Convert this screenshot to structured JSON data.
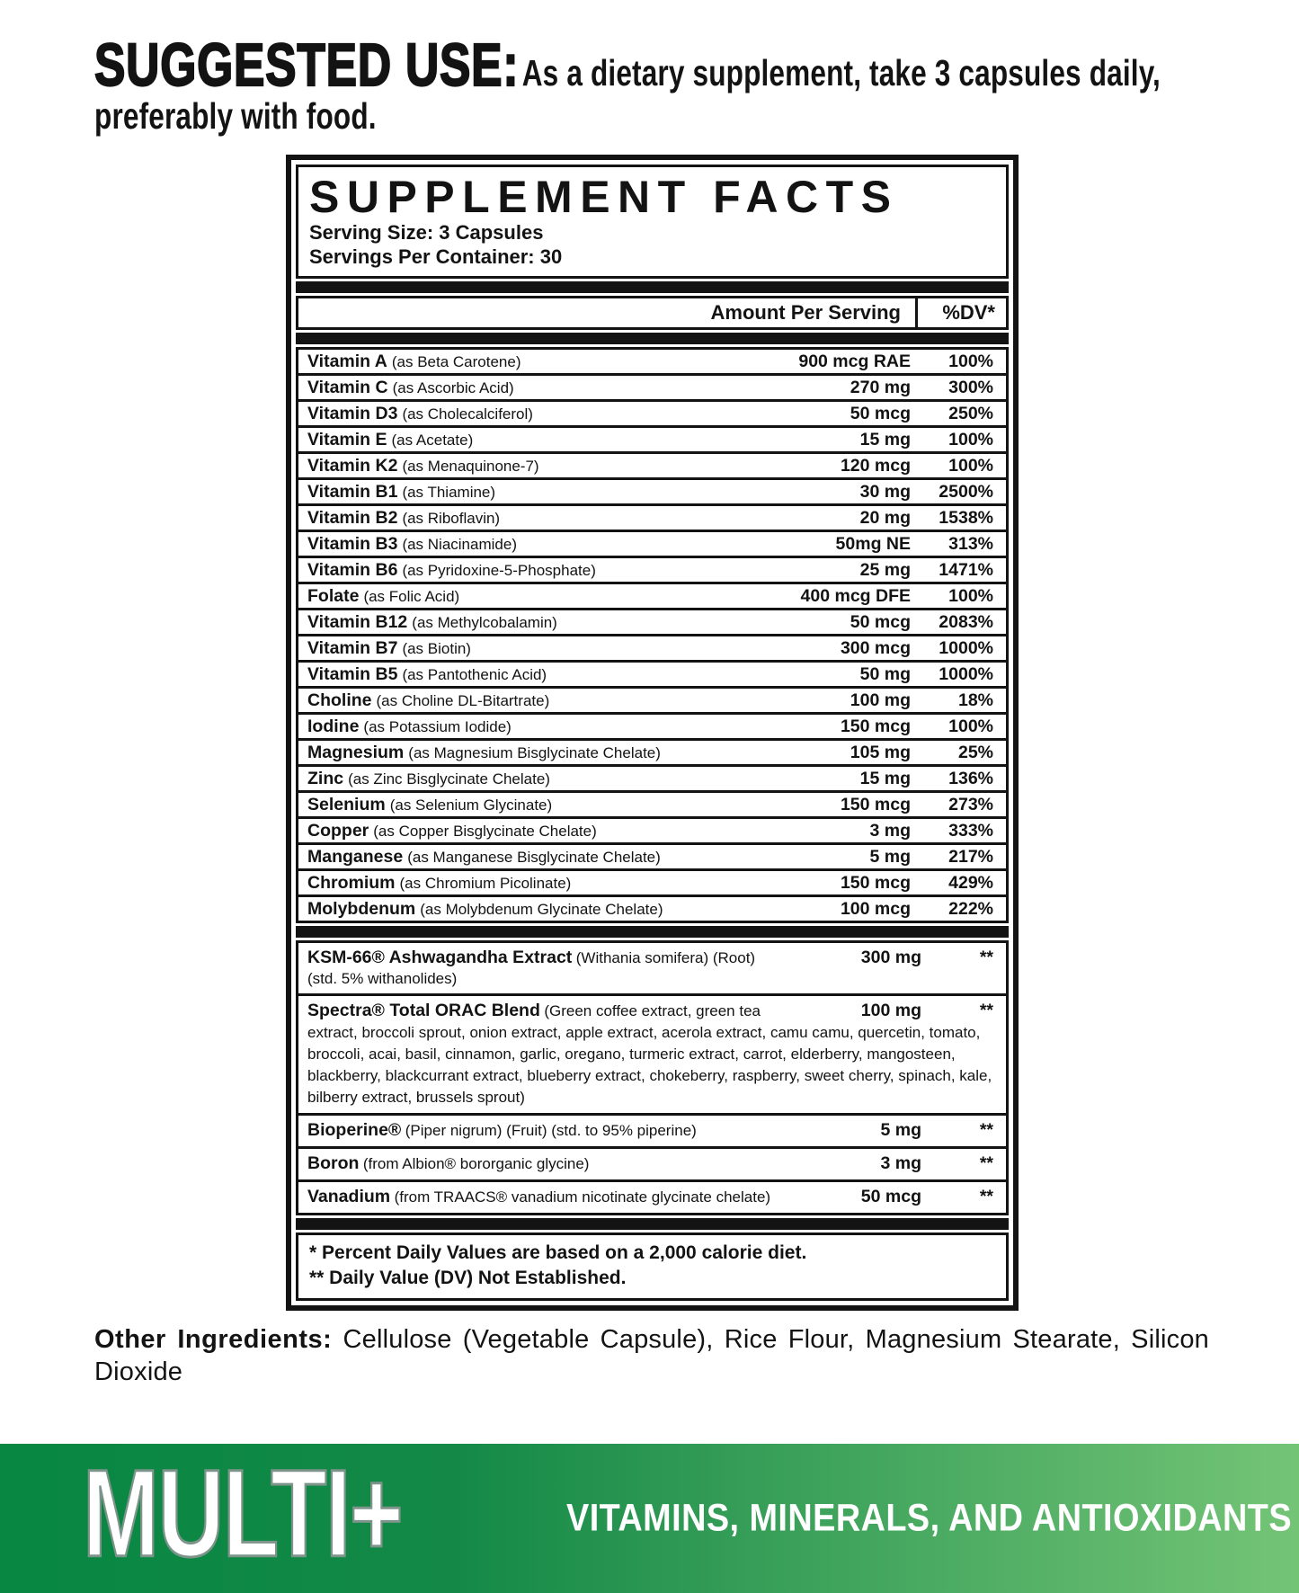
{
  "suggested_use": {
    "label": "SUGGESTED USE:",
    "text": "As a dietary supplement, take 3 capsules daily, preferably with food."
  },
  "panel": {
    "title": "SUPPLEMENT FACTS",
    "serving_size": "Serving Size: 3 Capsules",
    "servings_per_container": "Servings Per Container: 30",
    "columns": {
      "amount": "Amount Per Serving",
      "dv": "%DV*"
    },
    "nutrients": [
      {
        "name": "Vitamin A",
        "form": "(as Beta Carotene)",
        "amount": "900 mcg RAE",
        "dv": "100%"
      },
      {
        "name": "Vitamin C",
        "form": "(as Ascorbic Acid)",
        "amount": "270 mg",
        "dv": "300%"
      },
      {
        "name": "Vitamin D3",
        "form": "(as Cholecalciferol)",
        "amount": "50 mcg",
        "dv": "250%"
      },
      {
        "name": "Vitamin E",
        "form": "(as Acetate)",
        "amount": "15 mg",
        "dv": "100%"
      },
      {
        "name": "Vitamin K2",
        "form": "(as Menaquinone-7)",
        "amount": "120 mcg",
        "dv": "100%"
      },
      {
        "name": "Vitamin B1",
        "form": "(as Thiamine)",
        "amount": "30 mg",
        "dv": "2500%"
      },
      {
        "name": "Vitamin B2",
        "form": "(as Riboflavin)",
        "amount": "20 mg",
        "dv": "1538%"
      },
      {
        "name": "Vitamin B3",
        "form": "(as Niacinamide)",
        "amount": "50mg NE",
        "dv": "313%"
      },
      {
        "name": "Vitamin B6",
        "form": "(as Pyridoxine-5-Phosphate)",
        "amount": "25 mg",
        "dv": "1471%"
      },
      {
        "name": "Folate",
        "form": "(as Folic Acid)",
        "amount": "400 mcg DFE",
        "dv": "100%"
      },
      {
        "name": "Vitamin B12",
        "form": "(as Methylcobalamin)",
        "amount": "50 mcg",
        "dv": "2083%"
      },
      {
        "name": "Vitamin B7",
        "form": "(as Biotin)",
        "amount": "300 mcg",
        "dv": "1000%"
      },
      {
        "name": "Vitamin B5",
        "form": "(as Pantothenic Acid)",
        "amount": "50 mg",
        "dv": "1000%"
      },
      {
        "name": "Choline",
        "form": "(as Choline DL-Bitartrate)",
        "amount": "100 mg",
        "dv": "18%"
      },
      {
        "name": "Iodine",
        "form": "(as Potassium Iodide)",
        "amount": "150 mcg",
        "dv": "100%"
      },
      {
        "name": "Magnesium",
        "form": "(as Magnesium Bisglycinate Chelate)",
        "amount": "105 mg",
        "dv": "25%"
      },
      {
        "name": "Zinc",
        "form": "(as Zinc Bisglycinate Chelate)",
        "amount": "15 mg",
        "dv": "136%"
      },
      {
        "name": "Selenium",
        "form": "(as Selenium Glycinate)",
        "amount": "150 mcg",
        "dv": "273%"
      },
      {
        "name": "Copper",
        "form": "(as Copper Bisglycinate Chelate)",
        "amount": "3 mg",
        "dv": "333%"
      },
      {
        "name": "Manganese",
        "form": "(as Manganese Bisglycinate Chelate)",
        "amount": "5 mg",
        "dv": "217%"
      },
      {
        "name": "Chromium",
        "form": "(as Chromium Picolinate)",
        "amount": "150 mcg",
        "dv": "429%"
      },
      {
        "name": "Molybdenum",
        "form": "(as Molybdenum Glycinate Chelate)",
        "amount": "100 mcg",
        "dv": "222%"
      }
    ],
    "botanicals": [
      {
        "name": "KSM-66® Ashwagandha Extract",
        "form": "(Withania somifera) (Root)",
        "note": "(std. 5% withanolides)",
        "amount": "300 mg",
        "dv": "**"
      },
      {
        "name": "Spectra® Total ORAC Blend",
        "form": "(Green coffee extract, green tea extract, broccoli sprout, onion extract, apple extract, acerola extract, camu camu, quercetin, tomato, broccoli, acai, basil, cinnamon, garlic, oregano, turmeric extract, carrot, elderberry, mangosteen, blackberry, blackcurrant extract, blueberry extract, chokeberry, raspberry, sweet cherry, spinach, kale, bilberry extract, brussels sprout)",
        "amount": "100 mg",
        "dv": "**"
      },
      {
        "name": "Bioperine®",
        "form": "(Piper nigrum) (Fruit) (std. to 95% piperine)",
        "amount": "5 mg",
        "dv": "**"
      },
      {
        "name": "Boron",
        "form": "(from Albion® bororganic glycine)",
        "amount": "3 mg",
        "dv": "**"
      },
      {
        "name": "Vanadium",
        "form": "(from TRAACS® vanadium nicotinate glycinate chelate)",
        "amount": "50 mcg",
        "dv": "**"
      }
    ],
    "footnotes": [
      "* Percent Daily Values are based on a 2,000 calorie diet.",
      "** Daily Value (DV) Not Established."
    ]
  },
  "other_ingredients": {
    "label": "Other Ingredients:",
    "text": "Cellulose (Vegetable Capsule), Rice Flour, Magnesium Stearate, Silicon Dioxide"
  },
  "footer": {
    "brand": "MULTI+",
    "tagline": "VITAMINS, MINERALS, AND ANTIOXIDANTS",
    "colors": {
      "gradient_left": "#078742",
      "gradient_right": "#74c476",
      "ink": "#131313",
      "brand_outline": "#7d948a"
    }
  }
}
